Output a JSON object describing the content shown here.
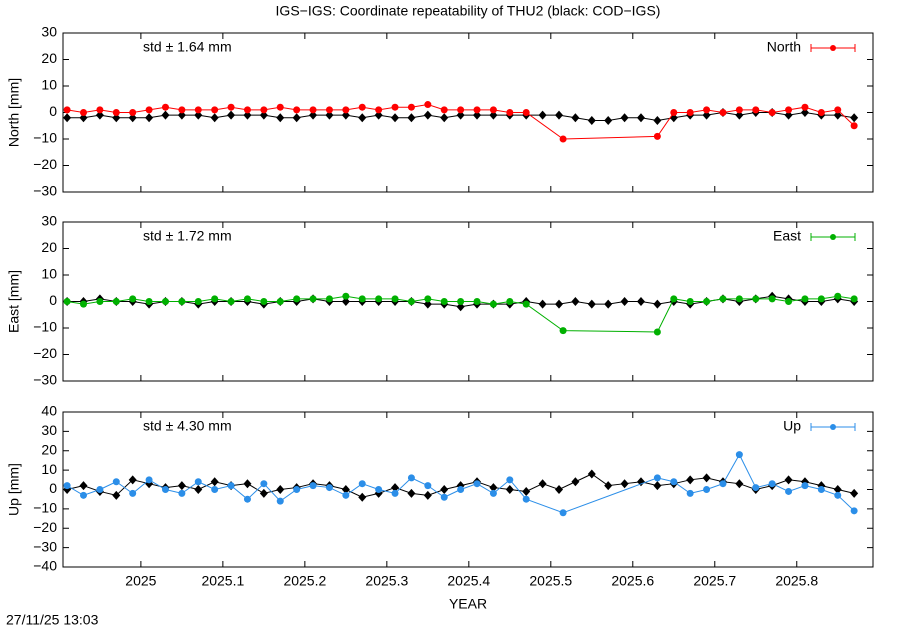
{
  "footer": "27/11/25 13:03",
  "chart_data": [
    {
      "type": "line",
      "title": "IGS−IGS: Coordinate repeatability of THU2 (black: COD−IGS)",
      "ylabel": "North [mm]",
      "annotation": "std ± 1.64 mm",
      "legend": "top-right",
      "xlim": [
        2024.905,
        2025.893
      ],
      "ylim": [
        -30,
        30
      ],
      "yticks": [
        {
          "value": -30,
          "label": "−30"
        },
        {
          "value": -20,
          "label": "−20"
        },
        {
          "value": -10,
          "label": "−10"
        },
        0,
        10,
        20,
        30
      ],
      "series": [
        {
          "name": "North",
          "color": "#ff0000",
          "x": [
            2024.91,
            2024.93,
            2024.95,
            2024.97,
            2024.99,
            2025.01,
            2025.03,
            2025.05,
            2025.07,
            2025.09,
            2025.11,
            2025.13,
            2025.15,
            2025.17,
            2025.19,
            2025.21,
            2025.23,
            2025.25,
            2025.27,
            2025.29,
            2025.31,
            2025.33,
            2025.35,
            2025.37,
            2025.39,
            2025.41,
            2025.43,
            2025.45,
            2025.47,
            2025.515,
            2025.63,
            2025.65,
            2025.67,
            2025.69,
            2025.71,
            2025.73,
            2025.75,
            2025.77,
            2025.79,
            2025.81,
            2025.83,
            2025.85,
            2025.87
          ],
          "values": [
            1,
            0,
            1,
            0,
            0,
            1,
            2,
            1,
            1,
            1,
            2,
            1,
            1,
            2,
            1,
            1,
            1,
            1,
            2,
            1,
            2,
            2,
            3,
            1,
            1,
            1,
            1,
            0,
            0,
            -10,
            -9,
            0,
            0,
            1,
            0,
            1,
            1,
            0,
            1,
            2,
            0,
            1,
            -5
          ]
        },
        {
          "color": "#000000",
          "x": [
            2024.91,
            2024.93,
            2024.95,
            2024.97,
            2024.99,
            2025.01,
            2025.03,
            2025.05,
            2025.07,
            2025.09,
            2025.11,
            2025.13,
            2025.15,
            2025.17,
            2025.19,
            2025.21,
            2025.23,
            2025.25,
            2025.27,
            2025.29,
            2025.31,
            2025.33,
            2025.35,
            2025.37,
            2025.39,
            2025.41,
            2025.43,
            2025.45,
            2025.47,
            2025.49,
            2025.51,
            2025.53,
            2025.55,
            2025.57,
            2025.59,
            2025.61,
            2025.63,
            2025.65,
            2025.67,
            2025.69,
            2025.71,
            2025.73,
            2025.75,
            2025.77,
            2025.79,
            2025.81,
            2025.83,
            2025.85,
            2025.87
          ],
          "values": [
            -2,
            -2,
            -1,
            -2,
            -2,
            -2,
            -1,
            -1,
            -1,
            -2,
            -1,
            -1,
            -1,
            -2,
            -2,
            -1,
            -1,
            -1,
            -2,
            -1,
            -2,
            -2,
            -1,
            -2,
            -1,
            -1,
            -1,
            -1,
            -1,
            -1,
            -1,
            -2,
            -3,
            -3,
            -2,
            -2,
            -3,
            -2,
            -1,
            -1,
            0,
            -1,
            0,
            0,
            -1,
            0,
            -1,
            -1,
            -2
          ]
        }
      ]
    },
    {
      "type": "line",
      "ylabel": "East [mm]",
      "annotation": "std ± 1.72 mm",
      "legend": "top-right",
      "xlim": [
        2024.905,
        2025.893
      ],
      "ylim": [
        -30,
        30
      ],
      "yticks": [
        {
          "value": -30,
          "label": "−30"
        },
        {
          "value": -20,
          "label": "−20"
        },
        {
          "value": -10,
          "label": "−10"
        },
        0,
        10,
        20,
        30
      ],
      "series": [
        {
          "name": "East",
          "color": "#00b000",
          "x": [
            2024.91,
            2024.93,
            2024.95,
            2024.97,
            2024.99,
            2025.01,
            2025.03,
            2025.05,
            2025.07,
            2025.09,
            2025.11,
            2025.13,
            2025.15,
            2025.17,
            2025.19,
            2025.21,
            2025.23,
            2025.25,
            2025.27,
            2025.29,
            2025.31,
            2025.33,
            2025.35,
            2025.37,
            2025.39,
            2025.41,
            2025.43,
            2025.45,
            2025.47,
            2025.515,
            2025.63,
            2025.65,
            2025.67,
            2025.69,
            2025.71,
            2025.73,
            2025.75,
            2025.77,
            2025.79,
            2025.81,
            2025.83,
            2025.85,
            2025.87
          ],
          "values": [
            0,
            -1,
            0,
            0,
            1,
            0,
            0,
            0,
            0,
            1,
            0,
            1,
            0,
            0,
            1,
            1,
            1,
            2,
            1,
            1,
            1,
            0,
            1,
            0,
            0,
            0,
            -1,
            0,
            -1,
            -11,
            -11.5,
            1,
            0,
            0,
            1,
            1,
            1,
            1,
            0,
            1,
            1,
            2,
            1
          ]
        },
        {
          "color": "#000000",
          "x": [
            2024.91,
            2024.93,
            2024.95,
            2024.97,
            2024.99,
            2025.01,
            2025.03,
            2025.05,
            2025.07,
            2025.09,
            2025.11,
            2025.13,
            2025.15,
            2025.17,
            2025.19,
            2025.21,
            2025.23,
            2025.25,
            2025.27,
            2025.29,
            2025.31,
            2025.33,
            2025.35,
            2025.37,
            2025.39,
            2025.41,
            2025.43,
            2025.45,
            2025.47,
            2025.49,
            2025.51,
            2025.53,
            2025.55,
            2025.57,
            2025.59,
            2025.61,
            2025.63,
            2025.65,
            2025.67,
            2025.69,
            2025.71,
            2025.73,
            2025.75,
            2025.77,
            2025.79,
            2025.81,
            2025.83,
            2025.85,
            2025.87
          ],
          "values": [
            0,
            0,
            1,
            0,
            0,
            -1,
            0,
            0,
            -1,
            0,
            0,
            0,
            -1,
            0,
            0,
            1,
            0,
            0,
            0,
            0,
            0,
            0,
            -1,
            -1,
            -2,
            -1,
            -1,
            -1,
            0,
            -1,
            -1,
            0,
            -1,
            -1,
            0,
            0,
            -1,
            0,
            -1,
            0,
            1,
            0,
            1,
            2,
            1,
            0,
            0,
            1,
            0
          ]
        }
      ]
    },
    {
      "type": "line",
      "ylabel": "Up [mm]",
      "xlabel": "YEAR",
      "annotation": "std ± 4.30 mm",
      "legend": "top-right",
      "xlim": [
        2024.905,
        2025.893
      ],
      "ylim": [
        -40,
        40
      ],
      "yticks": [
        {
          "value": -40,
          "label": "−40"
        },
        {
          "value": -30,
          "label": "−30"
        },
        {
          "value": -20,
          "label": "−20"
        },
        {
          "value": -10,
          "label": "−10"
        },
        0,
        10,
        20,
        30,
        40
      ],
      "xticks": [
        2025,
        2025.1,
        2025.2,
        2025.3,
        2025.4,
        2025.5,
        2025.6,
        2025.7,
        2025.8
      ],
      "series": [
        {
          "name": "Up",
          "color": "#2b8ee8",
          "x": [
            2024.91,
            2024.93,
            2024.95,
            2024.97,
            2024.99,
            2025.01,
            2025.03,
            2025.05,
            2025.07,
            2025.09,
            2025.11,
            2025.13,
            2025.15,
            2025.17,
            2025.19,
            2025.21,
            2025.23,
            2025.25,
            2025.27,
            2025.29,
            2025.31,
            2025.33,
            2025.35,
            2025.37,
            2025.39,
            2025.41,
            2025.43,
            2025.45,
            2025.47,
            2025.515,
            2025.63,
            2025.65,
            2025.67,
            2025.69,
            2025.71,
            2025.73,
            2025.75,
            2025.77,
            2025.79,
            2025.81,
            2025.83,
            2025.85,
            2025.87
          ],
          "values": [
            2,
            -3,
            0,
            4,
            -2,
            5,
            0,
            -2,
            4,
            0,
            2,
            -5,
            3,
            -6,
            0,
            2,
            1,
            -3,
            3,
            0,
            -2,
            6,
            2,
            -4,
            0,
            3,
            -2,
            5,
            -5,
            -12,
            6,
            4,
            -2,
            0,
            3,
            18,
            1,
            3,
            -1,
            2,
            0,
            -3,
            -11
          ]
        },
        {
          "color": "#000000",
          "x": [
            2024.91,
            2024.93,
            2024.95,
            2024.97,
            2024.99,
            2025.01,
            2025.03,
            2025.05,
            2025.07,
            2025.09,
            2025.11,
            2025.13,
            2025.15,
            2025.17,
            2025.19,
            2025.21,
            2025.23,
            2025.25,
            2025.27,
            2025.29,
            2025.31,
            2025.33,
            2025.35,
            2025.37,
            2025.39,
            2025.41,
            2025.43,
            2025.45,
            2025.47,
            2025.49,
            2025.51,
            2025.53,
            2025.55,
            2025.57,
            2025.59,
            2025.61,
            2025.63,
            2025.65,
            2025.67,
            2025.69,
            2025.71,
            2025.73,
            2025.75,
            2025.77,
            2025.79,
            2025.81,
            2025.83,
            2025.85,
            2025.87
          ],
          "values": [
            0,
            2,
            -1,
            -3,
            5,
            3,
            1,
            2,
            0,
            4,
            2,
            3,
            -2,
            0,
            1,
            3,
            2,
            0,
            -4,
            -2,
            1,
            -2,
            -3,
            0,
            2,
            4,
            1,
            0,
            -1,
            3,
            0,
            4,
            8,
            2,
            3,
            4,
            2,
            3,
            5,
            6,
            4,
            3,
            0,
            2,
            5,
            4,
            2,
            0,
            -2
          ]
        }
      ]
    }
  ]
}
